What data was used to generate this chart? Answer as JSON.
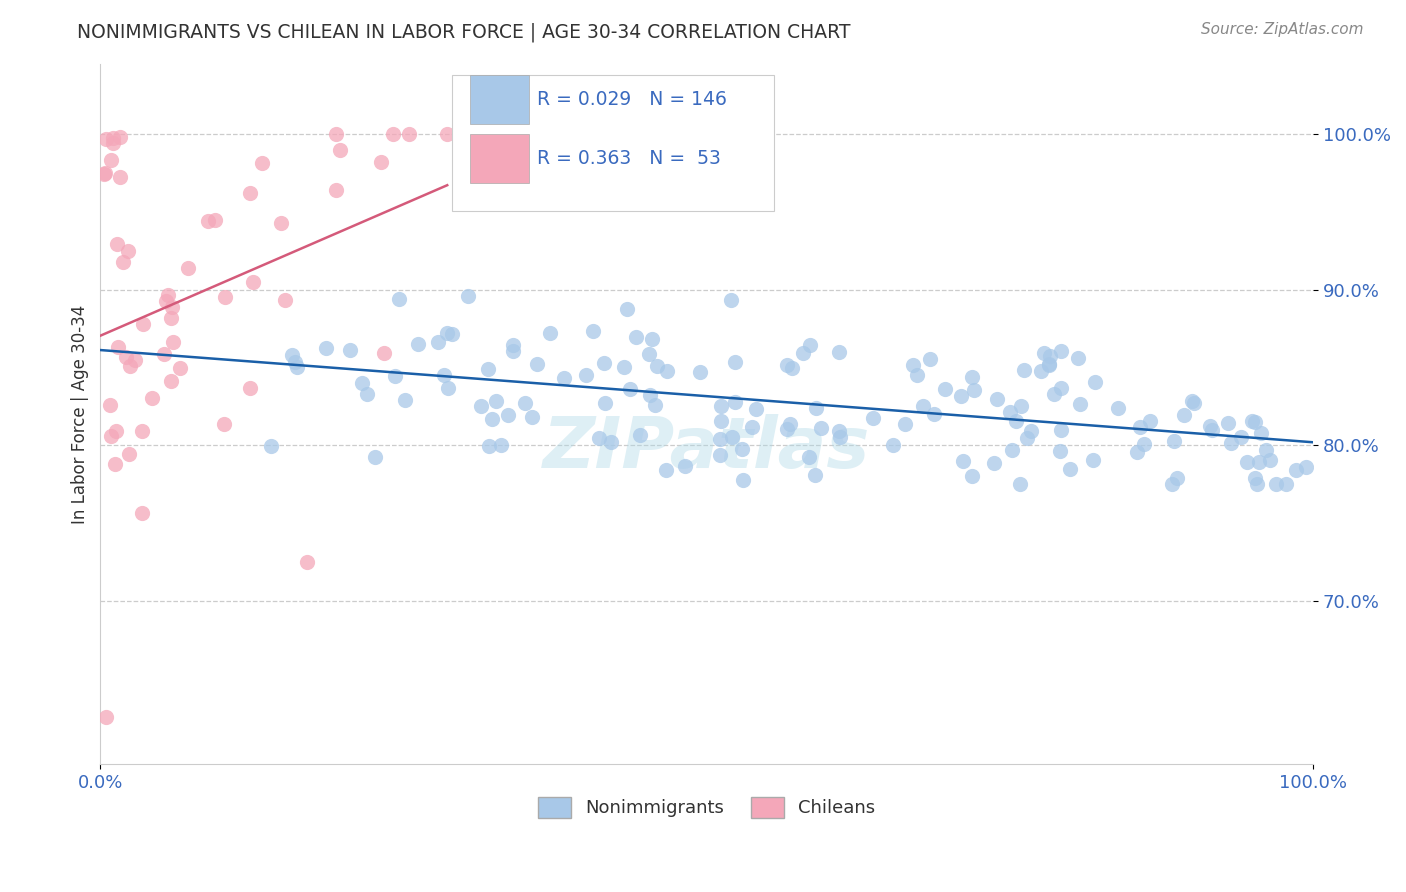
{
  "title": "NONIMMIGRANTS VS CHILEAN IN LABOR FORCE | AGE 30-34 CORRELATION CHART",
  "source": "Source: ZipAtlas.com",
  "ylabel": "In Labor Force | Age 30-34",
  "blue_color": "#a8c8e8",
  "pink_color": "#f4a7b9",
  "blue_line_color": "#1a5fa8",
  "pink_line_color": "#d45a7a",
  "background_color": "#ffffff",
  "grid_color": "#cccccc",
  "xlim": [
    0.0,
    1.0
  ],
  "ylim": [
    0.595,
    1.045
  ],
  "nonimmigrants_R": 0.029,
  "nonimmigrants_N": 146,
  "chileans_R": 0.363,
  "chileans_N": 53,
  "watermark": "ZIPatlas",
  "tick_color": "#3a6abf",
  "title_color": "#333333",
  "source_color": "#888888"
}
